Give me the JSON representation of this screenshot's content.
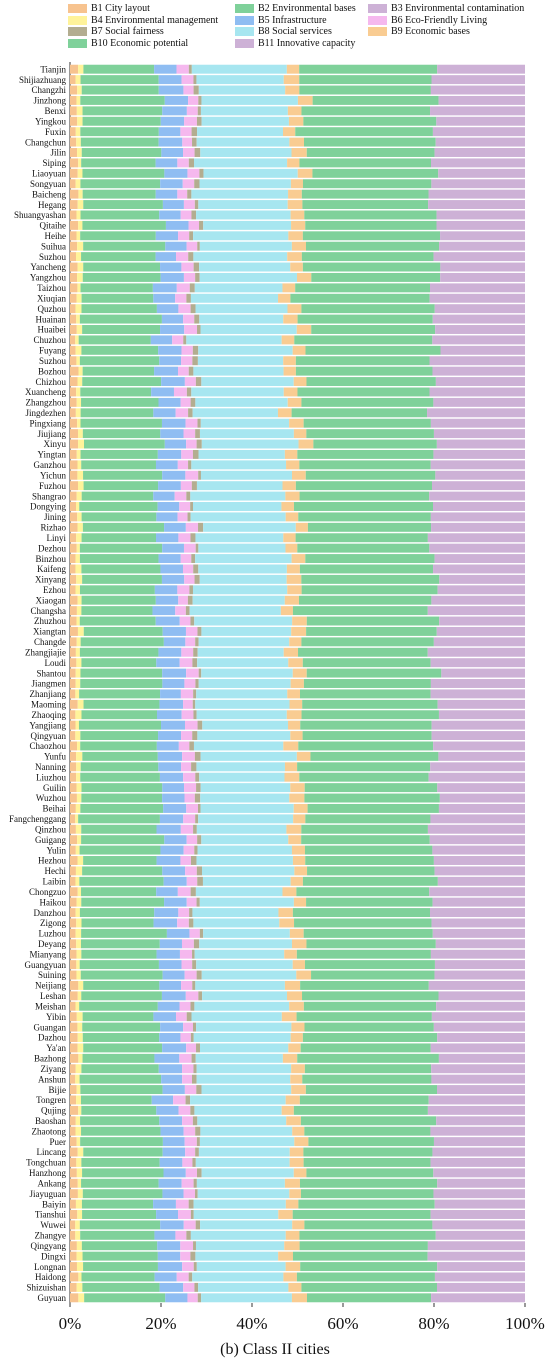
{
  "caption": "(b) Class II cities",
  "chart_data": {
    "type": "bar",
    "orientation": "horizontal",
    "stacked": "percent",
    "xlim": [
      0,
      100
    ],
    "xticks": [
      "0%",
      "20%",
      "40%",
      "60%",
      "80%",
      "100%"
    ],
    "grid": false,
    "legend_position": "top",
    "series": [
      {
        "key": "B1",
        "name": "B1 City layout",
        "color": "#f7c38f"
      },
      {
        "key": "B2",
        "name": "B2 Environmental bases",
        "color": "#7fd19a"
      },
      {
        "key": "B3",
        "name": "B3 Environmental contamination",
        "color": "#cdb1d6"
      },
      {
        "key": "B4",
        "name": "B4 Environmental management",
        "color": "#fff39a"
      },
      {
        "key": "B5",
        "name": "B5 Infrastructure",
        "color": "#8fbdf2"
      },
      {
        "key": "B6",
        "name": "B6 Eco-Friendly Living",
        "color": "#f5b8ee"
      },
      {
        "key": "B7",
        "name": "B7 Social fairness",
        "color": "#b3ad90"
      },
      {
        "key": "B8",
        "name": "B8 Social services",
        "color": "#a7e6f0"
      },
      {
        "key": "B9",
        "name": "B9 Economic bases",
        "color": "#f9cc92"
      },
      {
        "key": "B10",
        "name": "B10 Economic potential",
        "color": "#7fd19a"
      },
      {
        "key": "B11",
        "name": "B11 Innovative capacity",
        "color": "#cdb1d6"
      }
    ],
    "segment_order": [
      "B1",
      "B4",
      "B2",
      "B5",
      "B6",
      "B7",
      "B8",
      "B9",
      "B10",
      "B11"
    ],
    "categories": [
      "Tianjin",
      "Shijiazhuang",
      "Changzhi",
      "Jinzhong",
      "Benxi",
      "Yingkou",
      "Fuxin",
      "Changchun",
      "Jilin",
      "Siping",
      "Liaoyuan",
      "Songyuan",
      "Baicheng",
      "Hegang",
      "Shuangyashan",
      "Qitaihe",
      "Heihe",
      "Suihua",
      "Suzhou",
      "Yancheng",
      "Yangzhou",
      "Taizhou",
      "Xiuqian",
      "Quzhou",
      "Huainan",
      "Huaibei",
      "Chuzhou",
      "Fuyang",
      "Suzhou",
      "Bozhou",
      "Chizhou",
      "Xuancheng",
      "Zhangzhou",
      "Jingdezhen",
      "Pingxiang",
      "Jiujiang",
      "Xinyu",
      "Yingtan",
      "Ganzhou",
      "Yichun",
      "Fuzhou",
      "Shangrao",
      "Dongying",
      "Jining",
      "Rizhao",
      "Linyi",
      "Dezhou",
      "Binzhou",
      "Kaifeng",
      "Xinyang",
      "Ezhou",
      "Xiaogan",
      "Changsha",
      "Zhuzhou",
      "Xiangtan",
      "Changde",
      "Zhangjiajie",
      "Loudi",
      "Shantou",
      "Jiangmen",
      "Zhanjiang",
      "Maoming",
      "Zhaoqing",
      "Yangjiang",
      "Qingyuan",
      "Chaozhou",
      "Yunfu",
      "Nanning",
      "Liuzhou",
      "Guilin",
      "Wuzhou",
      "Beihai",
      "Fangchenggang",
      "Qinzhou",
      "Guigang",
      "Yulin",
      "Hezhou",
      "Hechi",
      "Laibin",
      "Chongzuo",
      "Haikou",
      "Danzhou",
      "Zigong",
      "Luzhou",
      "Deyang",
      "Mianyang",
      "Guangyuan",
      "Suining",
      "Neijiang",
      "Leshan",
      "Meishan",
      "Yibin",
      "Guangan",
      "Dazhou",
      "Ya'an",
      "Bazhong",
      "Ziyang",
      "Anshun",
      "Bijie",
      "Tongren",
      "Qujing",
      "Baoshan",
      "Zhaotong",
      "Puer",
      "Lincang",
      "Tongchuan",
      "Hanzhong",
      "Ankang",
      "Jiayuguan",
      "Baiyin",
      "Tianshui",
      "Wuwei",
      "Zhangye",
      "Qingyang",
      "Dingxi",
      "Longnan",
      "Haidong",
      "Shizuishan",
      "Guyuan"
    ],
    "base_shares": {
      "B1": 1.5,
      "B4": 1.0,
      "B2": 17.0,
      "B5": 5.0,
      "B6": 2.5,
      "B7": 0.9,
      "B8": 20.0,
      "B9": 3.0,
      "B10": 29.0,
      "B11": 20.1
    }
  }
}
